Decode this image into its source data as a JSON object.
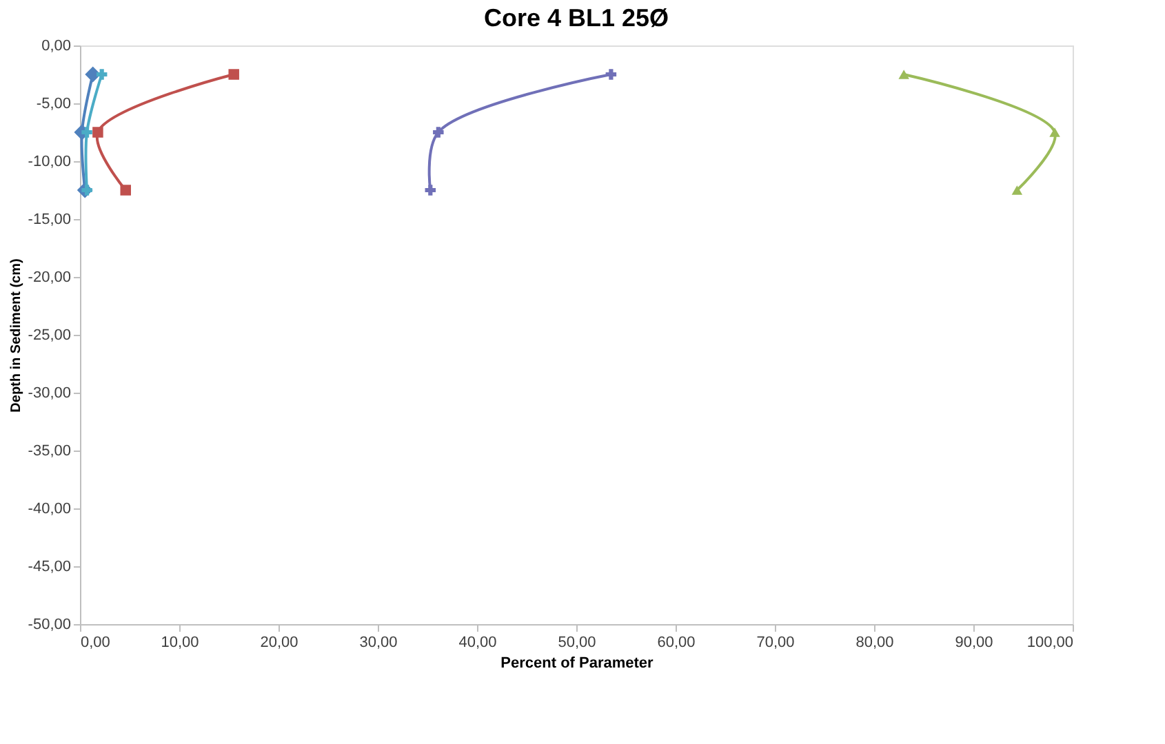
{
  "chart_data": {
    "type": "line",
    "title": "Core 4 BL1 25Ø",
    "xlabel": "Percent of Parameter",
    "ylabel": "Depth in Sediment (cm)",
    "xlim": [
      0,
      100
    ],
    "ylim": [
      -50,
      0
    ],
    "xticks": [
      {
        "value": 0,
        "label": "0,00"
      },
      {
        "value": 10,
        "label": "10,00"
      },
      {
        "value": 20,
        "label": "20,00"
      },
      {
        "value": 30,
        "label": "30,00"
      },
      {
        "value": 40,
        "label": "40,00"
      },
      {
        "value": 50,
        "label": "50,00"
      },
      {
        "value": 60,
        "label": "60,00"
      },
      {
        "value": 70,
        "label": "70,00"
      },
      {
        "value": 80,
        "label": "80,00"
      },
      {
        "value": 90,
        "label": "90,00"
      },
      {
        "value": 100,
        "label": "100,00"
      }
    ],
    "yticks": [
      {
        "value": 0,
        "label": "0,00"
      },
      {
        "value": -5,
        "label": "-5,00"
      },
      {
        "value": -10,
        "label": "-10,00"
      },
      {
        "value": -15,
        "label": "-15,00"
      },
      {
        "value": -20,
        "label": "-20,00"
      },
      {
        "value": -25,
        "label": "-25,00"
      },
      {
        "value": -30,
        "label": "-30,00"
      },
      {
        "value": -35,
        "label": "-35,00"
      },
      {
        "value": -40,
        "label": "-40,00"
      },
      {
        "value": -45,
        "label": "-45,00"
      },
      {
        "value": -50,
        "label": "-50,00"
      }
    ],
    "grid": false,
    "series": [
      {
        "color": "#4f81bd",
        "marker": "diamond",
        "x": [
          1.3,
          0.2,
          0.5
        ],
        "values": [
          -2.5,
          -7.5,
          -12.5
        ]
      },
      {
        "color": "#4bacc6",
        "marker": "cross",
        "x": [
          2.2,
          0.7,
          0.7
        ],
        "values": [
          -2.5,
          -7.5,
          -12.5
        ]
      },
      {
        "color": "#c0504d",
        "marker": "square",
        "x": [
          15.5,
          1.8,
          4.6
        ],
        "values": [
          -2.5,
          -7.5,
          -12.5
        ]
      },
      {
        "color": "#7070b8",
        "marker": "cross",
        "x": [
          53.5,
          36.1,
          35.3
        ],
        "values": [
          -2.5,
          -7.5,
          -12.5
        ]
      },
      {
        "color": "#9bbb59",
        "marker": "triangle",
        "x": [
          83.0,
          98.2,
          94.4
        ],
        "values": [
          -2.5,
          -7.5,
          -12.5
        ]
      }
    ]
  }
}
